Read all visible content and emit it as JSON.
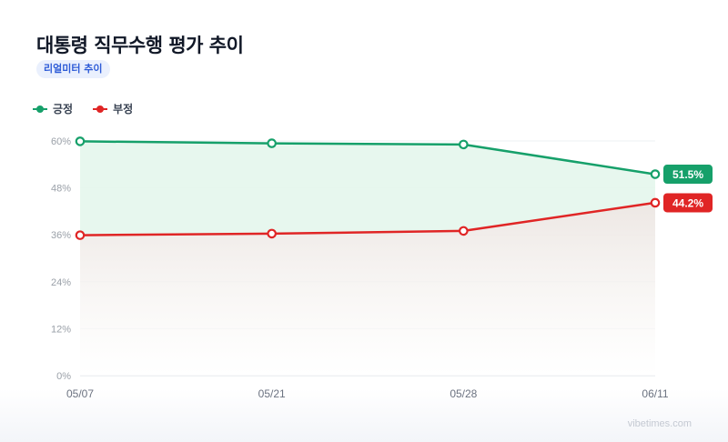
{
  "header": {
    "title": "대통령 직무수행 평가 추이",
    "badge": "리얼미터 추이"
  },
  "watermark": "vibetimes.com",
  "colors": {
    "positive": "#16a06a",
    "negative": "#e02525",
    "positive_fill": "#e4f6ec",
    "negative_fill": "#ece6e2",
    "grid": "#eef0f3",
    "tick_text": "#9aa0a8",
    "badge_bg": "#eaf0fd",
    "badge_text": "#2d5bd7"
  },
  "chart_data": {
    "type": "line",
    "categories": [
      "05/07",
      "05/21",
      "05/28",
      "06/11"
    ],
    "series": [
      {
        "name": "긍정",
        "values": [
          59.9,
          59.4,
          59.1,
          51.5
        ],
        "color": "#16a06a",
        "end_label": "51.5%"
      },
      {
        "name": "부정",
        "values": [
          35.9,
          36.3,
          37.0,
          44.2
        ],
        "color": "#e02525",
        "end_label": "44.2%"
      }
    ],
    "ylim": [
      0,
      60
    ],
    "yticks": [
      "0%",
      "12%",
      "24%",
      "36%",
      "48%",
      "60%"
    ],
    "ytick_values": [
      0,
      12,
      24,
      36,
      48,
      60
    ],
    "grid": true,
    "legend": "top-left",
    "area_fill": true
  }
}
